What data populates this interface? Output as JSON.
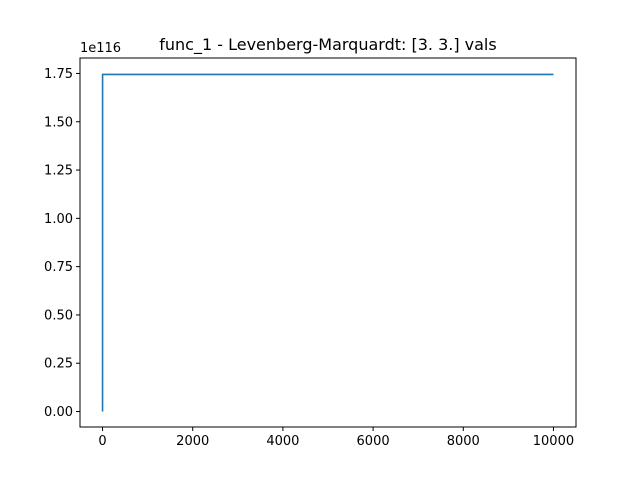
{
  "chart_data": {
    "type": "line",
    "title": "func_1 - Levenberg-Marquardt: [3. 3.] vals",
    "xlabel": "",
    "ylabel": "",
    "y_offset_label": "1e116",
    "xlim": [
      -500,
      10500
    ],
    "ylim": [
      -0.08,
      1.83
    ],
    "x_ticks": [
      0,
      2000,
      4000,
      6000,
      8000,
      10000
    ],
    "x_tick_labels": [
      "0",
      "2000",
      "4000",
      "6000",
      "8000",
      "10000"
    ],
    "y_ticks": [
      0.0,
      0.25,
      0.5,
      0.75,
      1.0,
      1.25,
      1.5,
      1.75
    ],
    "y_tick_labels": [
      "0.00",
      "0.25",
      "0.50",
      "0.75",
      "1.00",
      "1.25",
      "1.50",
      "1.75"
    ],
    "grid": false,
    "series": [
      {
        "color": "#1f77b4",
        "x": [
          0,
          1,
          10000
        ],
        "y": [
          0.0,
          1.745,
          1.745
        ]
      }
    ]
  }
}
